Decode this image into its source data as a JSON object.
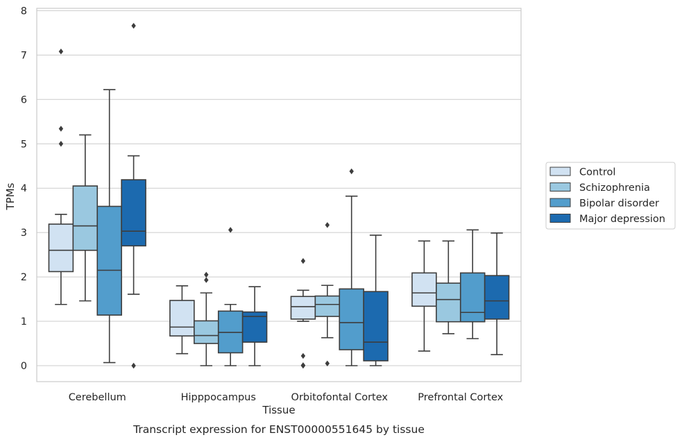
{
  "chart_data": {
    "type": "box",
    "title": "",
    "caption": "Transcript expression for ENST00000551645 by tissue",
    "xlabel": "Tissue",
    "ylabel": "TPMs",
    "ylim": [
      -0.38,
      8.08
    ],
    "yticks": [
      0,
      1,
      2,
      3,
      4,
      5,
      6,
      7,
      8
    ],
    "grid": "horizontal",
    "legend_position": "right",
    "categories": [
      "Cerebellum",
      "Hipppocampus",
      "Orbitofontal Cortex",
      "Prefrontal Cortex"
    ],
    "series": [
      {
        "name": "Control",
        "color": "#d1e2f2",
        "boxes": [
          {
            "whislo": 1.38,
            "q1": 2.12,
            "med": 2.6,
            "q3": 3.19,
            "whishi": 3.41,
            "fliers": [
              5.0,
              5.34,
              7.08
            ]
          },
          {
            "whislo": 0.27,
            "q1": 0.67,
            "med": 0.87,
            "q3": 1.47,
            "whishi": 1.8,
            "fliers": []
          },
          {
            "whislo": 1.0,
            "q1": 1.05,
            "med": 1.33,
            "q3": 1.56,
            "whishi": 1.7,
            "fliers": [
              2.36,
              0.22,
              0.0,
              0.01
            ]
          },
          {
            "whislo": 0.33,
            "q1": 1.34,
            "med": 1.64,
            "q3": 2.09,
            "whishi": 2.81,
            "fliers": []
          }
        ]
      },
      {
        "name": "Schizophrenia",
        "color": "#9ac8e0",
        "boxes": [
          {
            "whislo": 1.46,
            "q1": 2.6,
            "med": 3.15,
            "q3": 4.05,
            "whishi": 5.2,
            "fliers": []
          },
          {
            "whislo": 0.0,
            "q1": 0.5,
            "med": 0.68,
            "q3": 1.01,
            "whishi": 1.64,
            "fliers": [
              1.93,
              2.05
            ]
          },
          {
            "whislo": 0.63,
            "q1": 1.11,
            "med": 1.38,
            "q3": 1.57,
            "whishi": 1.81,
            "fliers": [
              3.17,
              0.05
            ]
          },
          {
            "whislo": 0.72,
            "q1": 0.99,
            "med": 1.49,
            "q3": 1.86,
            "whishi": 2.81,
            "fliers": []
          }
        ]
      },
      {
        "name": "Bipolar disorder",
        "color": "#529dcc",
        "boxes": [
          {
            "whislo": 0.07,
            "q1": 1.14,
            "med": 2.15,
            "q3": 3.59,
            "whishi": 6.22,
            "fliers": []
          },
          {
            "whislo": 0.0,
            "q1": 0.29,
            "med": 0.75,
            "q3": 1.23,
            "whishi": 1.38,
            "fliers": [
              3.06
            ]
          },
          {
            "whislo": 0.0,
            "q1": 0.36,
            "med": 0.97,
            "q3": 1.73,
            "whishi": 3.82,
            "fliers": [
              4.38
            ]
          },
          {
            "whislo": 0.61,
            "q1": 0.99,
            "med": 1.2,
            "q3": 2.09,
            "whishi": 3.06,
            "fliers": []
          }
        ]
      },
      {
        "name": "Major depression",
        "color": "#1c6aaf",
        "boxes": [
          {
            "whislo": 1.61,
            "q1": 2.7,
            "med": 3.03,
            "q3": 4.19,
            "whishi": 4.73,
            "fliers": [
              7.66,
              0.0
            ]
          },
          {
            "whislo": 0.0,
            "q1": 0.53,
            "med": 1.11,
            "q3": 1.21,
            "whishi": 1.78,
            "fliers": []
          },
          {
            "whislo": 0.0,
            "q1": 0.11,
            "med": 0.53,
            "q3": 1.67,
            "whishi": 2.94,
            "fliers": []
          },
          {
            "whislo": 0.25,
            "q1": 1.05,
            "med": 1.46,
            "q3": 2.03,
            "whishi": 2.99,
            "fliers": []
          }
        ]
      }
    ]
  }
}
